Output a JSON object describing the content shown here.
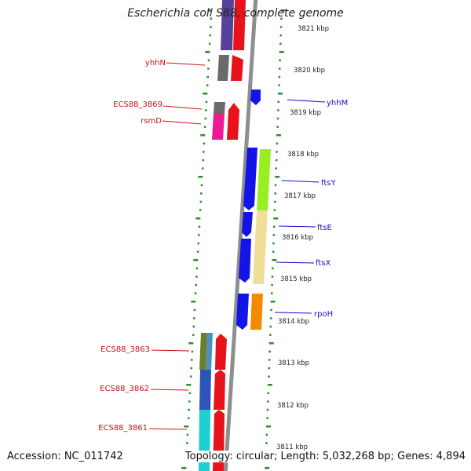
{
  "title": "Escherichia coli S88, complete genome",
  "accession": "Accession: NC_011742",
  "topology": "Topology: circular; Length: 5,032,268 bp; Genes: 4,894",
  "colors": {
    "backbone": "#8e8e8e",
    "tick": "#2e8b2e",
    "left_label": "#cc1111",
    "right_label": "#1111cc"
  },
  "kbp_labels": [
    "3821 kbp",
    "3820 kbp",
    "3819 kbp",
    "3818 kbp",
    "3817 kbp",
    "3816 kbp",
    "3815 kbp",
    "3814 kbp",
    "3813 kbp",
    "3812 kbp",
    "3811 kbp"
  ],
  "gene_labels_left": [
    "yhhN",
    "ECS88_3869",
    "rsmD",
    "ECS88_3863",
    "ECS88_3862",
    "ECS88_3861"
  ],
  "gene_labels_right": [
    "yhhM",
    "ftsY",
    "ftsE",
    "ftsX",
    "rpoH"
  ]
}
